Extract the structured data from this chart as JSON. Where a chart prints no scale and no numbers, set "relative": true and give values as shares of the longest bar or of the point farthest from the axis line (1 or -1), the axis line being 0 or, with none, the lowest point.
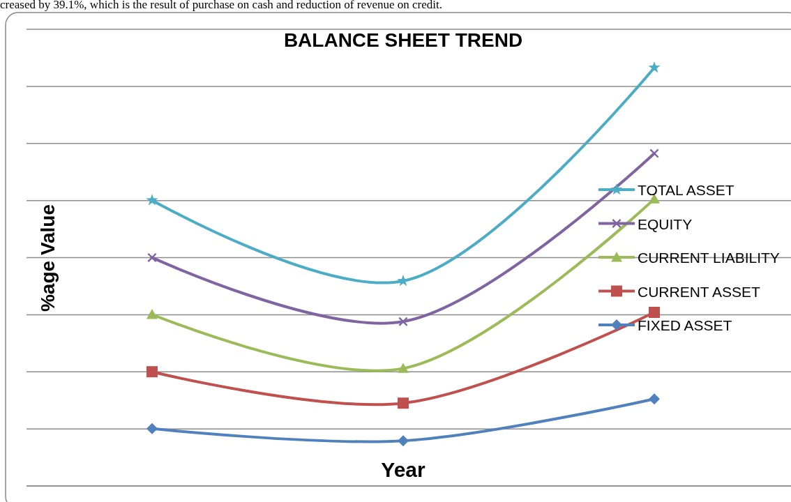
{
  "chart_data": {
    "type": "line",
    "title": "BALANCE SHEET TREND",
    "xlabel": "Year",
    "ylabel": "%age Value",
    "annotations": [
      "creased by 39.1%, which is the result of purchase on cash and reduction of revenue on credit."
    ],
    "categories": [
      null,
      null,
      null
    ],
    "relative": true,
    "grid": "y",
    "legend": "right",
    "series": [
      {
        "name": "TOTAL ASSET",
        "color": "#4bacc6",
        "marker": "star",
        "values": [
          0.683,
          0.49,
          1
        ]
      },
      {
        "name": "EQUITY",
        "color": "#8064a2",
        "marker": "cross",
        "values": [
          0.546,
          0.393,
          0.795
        ]
      },
      {
        "name": "CURRENT LIABILITY",
        "color": "#9bbb59",
        "marker": "triangle",
        "values": [
          0.41,
          0.281,
          0.686
        ]
      },
      {
        "name": "CURRENT ASSET",
        "color": "#c0504d",
        "marker": "square",
        "values": [
          0.273,
          0.198,
          0.415
        ]
      },
      {
        "name": "FIXED ASSET",
        "color": "#4f81bd",
        "marker": "diamond",
        "values": [
          0.137,
          0.108,
          0.208
        ]
      }
    ]
  }
}
